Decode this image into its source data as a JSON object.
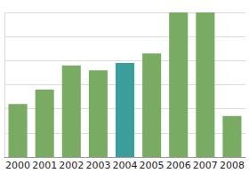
{
  "chart_data": {
    "type": "bar",
    "categories": [
      "2000",
      "2001",
      "2002",
      "2003",
      "2004",
      "2005",
      "2006",
      "2007",
      "2008"
    ],
    "values": [
      2.2,
      2.8,
      3.8,
      3.6,
      3.9,
      4.3,
      6.0,
      6.0,
      1.7
    ],
    "colors": [
      "#7aab63",
      "#7aab63",
      "#7aab63",
      "#7aab63",
      "#3a9e9a",
      "#7aab63",
      "#7aab63",
      "#7aab63",
      "#7aab63"
    ],
    "ylim": [
      0,
      6
    ],
    "yticks": [
      0,
      1,
      2,
      3,
      4,
      5,
      6
    ],
    "grid": true,
    "tick_labels": "x"
  }
}
